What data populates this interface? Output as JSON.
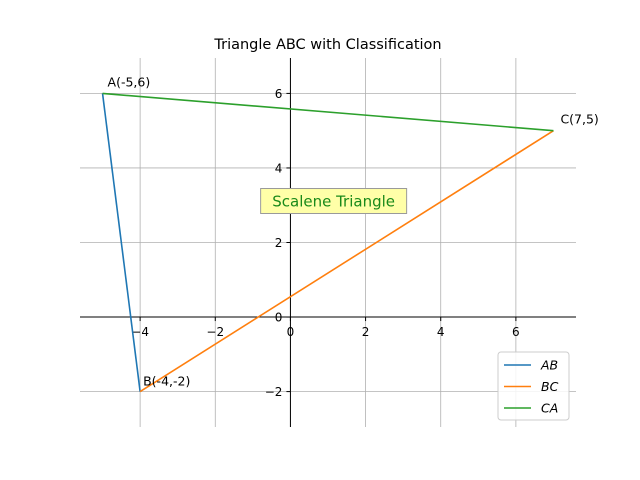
{
  "chart_data": {
    "type": "line",
    "title": "Triangle ABC with Classification",
    "xlim": [
      -5.6,
      7.6
    ],
    "ylim": [
      -2.95,
      6.95
    ],
    "x_ticks": [
      -4,
      -2,
      0,
      2,
      4,
      6
    ],
    "y_ticks": [
      -2,
      0,
      2,
      4,
      6
    ],
    "x_tick_labels": [
      "−4",
      "−2",
      "0",
      "2",
      "4",
      "6"
    ],
    "y_tick_labels": [
      "−2",
      "0",
      "2",
      "4",
      "6"
    ],
    "grid": true,
    "legend_position": "lower-right",
    "points": [
      {
        "name": "A",
        "x": -5,
        "y": 6,
        "label": "A(-5,6)"
      },
      {
        "name": "B",
        "x": -4,
        "y": -2,
        "label": "B(-4,-2)"
      },
      {
        "name": "C",
        "x": 7,
        "y": 5,
        "label": "C(7,5)"
      }
    ],
    "series": [
      {
        "name": "AB",
        "x": [
          -5,
          -4
        ],
        "y": [
          6,
          -2
        ],
        "color": "#1f77b4"
      },
      {
        "name": "BC",
        "x": [
          -4,
          7
        ],
        "y": [
          -2,
          5
        ],
        "color": "#ff7f0e"
      },
      {
        "name": "CA",
        "x": [
          7,
          -5
        ],
        "y": [
          5,
          6
        ],
        "color": "#2ca02c"
      }
    ],
    "annotation": {
      "text": "Scalene Triangle",
      "x": 1.15,
      "y": 3.1,
      "color": "#1a8a1a",
      "background": "#ffffa8"
    }
  }
}
